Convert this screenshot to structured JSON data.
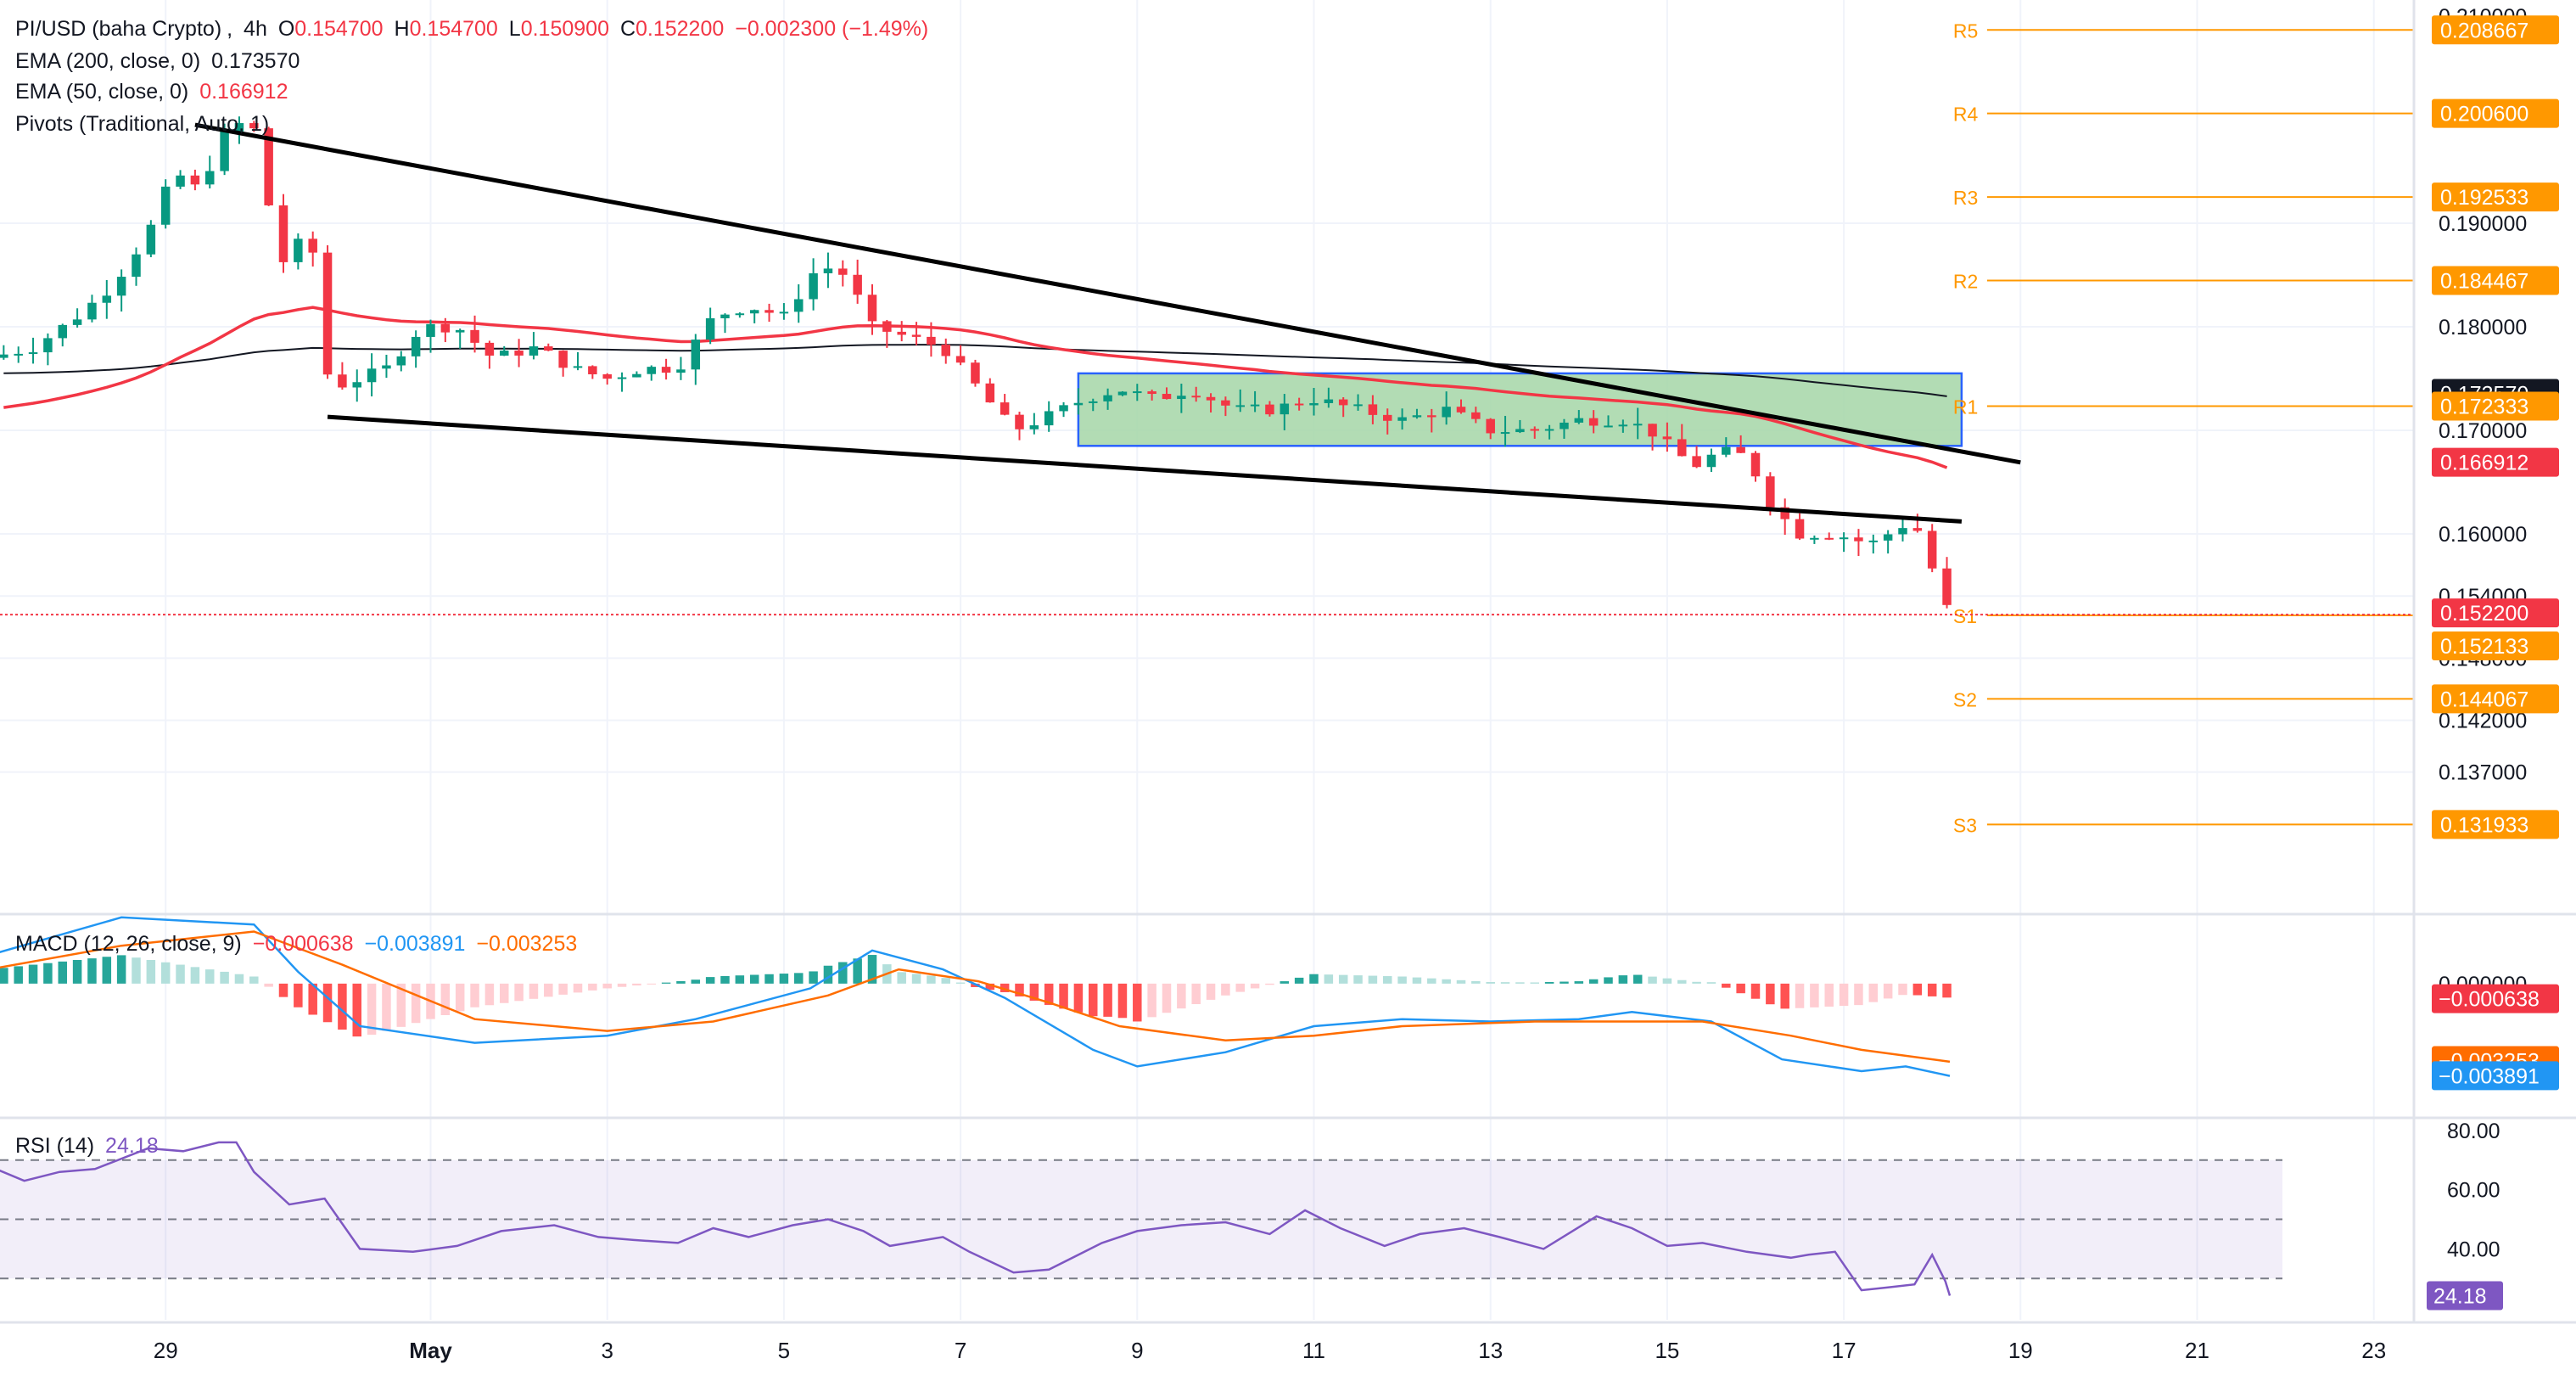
{
  "header": {
    "symbol": "PI/USD (baha Crypto)",
    "interval": "4h",
    "open_label": "O",
    "open": "0.154700",
    "high_label": "H",
    "high": "0.154700",
    "low_label": "L",
    "low": "0.150900",
    "close_label": "C",
    "close": "0.152200",
    "change": "−0.002300 (−1.49%)"
  },
  "indicators": {
    "ema200": {
      "label": "EMA (200, close, 0)",
      "value": "0.173570",
      "color": "#131722"
    },
    "ema50": {
      "label": "EMA (50, close, 0)",
      "value": "0.166912",
      "color": "#f23645"
    },
    "pivots": {
      "label": "Pivots (Traditional, Auto, 1)"
    },
    "macd": {
      "label": "MACD (12, 26, close, 9)",
      "histogram": "−0.000638",
      "macd": "−0.003891",
      "signal": "−0.003253"
    },
    "rsi": {
      "label": "RSI (14)",
      "value": "24.18"
    }
  },
  "colors": {
    "up": "#26a69a",
    "up_candle": "#089981",
    "down": "#f23645",
    "pivot": "#ff9800",
    "channel": "#000000",
    "box_fill": "#a5d6a7",
    "box_stroke": "#2962ff",
    "macd_line": "#2196f3",
    "signal_line": "#ff6d00",
    "rsi_line": "#7e57c2"
  },
  "chart_data": {
    "type": "candlestick",
    "price_axis": {
      "ticks": [
        "0.210000",
        "0.190000",
        "0.180000",
        "0.170000",
        "0.160000",
        "0.154000",
        "0.148000",
        "0.142000",
        "0.137000"
      ],
      "tick_values": [
        0.21,
        0.19,
        0.18,
        0.17,
        0.16,
        0.154,
        0.148,
        0.142,
        0.137
      ],
      "ylim": [
        0.1273,
        0.2123
      ]
    },
    "time_axis": {
      "labels": [
        "29",
        "May",
        "3",
        "5",
        "7",
        "9",
        "11",
        "13",
        "15",
        "17",
        "19",
        "21",
        "23"
      ],
      "label_days": [
        29,
        1,
        3,
        5,
        7,
        9,
        11,
        13,
        15,
        17,
        19,
        21,
        23
      ],
      "start": "Apr 27",
      "end": "May 24"
    },
    "candles_ohlc_sample": [
      [
        0.178,
        0.179,
        0.175,
        0.177
      ],
      [
        0.177,
        0.181,
        0.176,
        0.18
      ],
      [
        0.18,
        0.182,
        0.177,
        0.178
      ],
      [
        0.178,
        0.181,
        0.177,
        0.18
      ],
      [
        0.18,
        0.183,
        0.179,
        0.181
      ],
      [
        0.181,
        0.184,
        0.18,
        0.183
      ],
      [
        0.183,
        0.187,
        0.182,
        0.186
      ],
      [
        0.186,
        0.188,
        0.184,
        0.187
      ],
      [
        0.187,
        0.19,
        0.185,
        0.189
      ],
      [
        0.189,
        0.195,
        0.188,
        0.194
      ],
      [
        0.194,
        0.196,
        0.19,
        0.192
      ],
      [
        0.192,
        0.196,
        0.19,
        0.195
      ],
      [
        0.195,
        0.2,
        0.194,
        0.199
      ],
      [
        0.199,
        0.2,
        0.196,
        0.197
      ],
      [
        0.197,
        0.199,
        0.183,
        0.186
      ],
      [
        0.186,
        0.19,
        0.184,
        0.188
      ],
      [
        0.188,
        0.19,
        0.186,
        0.187
      ],
      [
        0.187,
        0.189,
        0.171,
        0.174
      ],
      [
        0.174,
        0.176,
        0.172,
        0.175
      ],
      [
        0.175,
        0.176,
        0.173,
        0.174
      ]
    ],
    "series": [
      {
        "name": "EMA (200, close, 0)",
        "last": 0.17357
      },
      {
        "name": "EMA (50, close, 0)",
        "last": 0.166912
      }
    ],
    "current_price": {
      "value": 0.1522,
      "label": "0.152200"
    },
    "axis_badges": [
      {
        "label": "0.208667",
        "value": 0.208667,
        "kind": "pivot"
      },
      {
        "label": "0.200600",
        "value": 0.2006,
        "kind": "pivot"
      },
      {
        "label": "0.192533",
        "value": 0.192533,
        "kind": "pivot"
      },
      {
        "label": "0.184467",
        "value": 0.184467,
        "kind": "pivot"
      },
      {
        "label": "0.173570",
        "value": 0.17357,
        "kind": "ema200"
      },
      {
        "label": "0.172333",
        "value": 0.172333,
        "kind": "pivot"
      },
      {
        "label": "0.166912",
        "value": 0.166912,
        "kind": "ema50"
      },
      {
        "label": "0.152200",
        "value": 0.1522,
        "kind": "price"
      },
      {
        "label": "0.152133",
        "value": 0.152133,
        "kind": "pivot"
      },
      {
        "label": "0.144067",
        "value": 0.144067,
        "kind": "pivot"
      },
      {
        "label": "0.131933",
        "value": 0.131933,
        "kind": "pivot"
      }
    ],
    "pivot_levels": [
      {
        "name": "R5",
        "value": 0.208667
      },
      {
        "name": "R4",
        "value": 0.2006
      },
      {
        "name": "R3",
        "value": 0.192533
      },
      {
        "name": "R2",
        "value": 0.184467
      },
      {
        "name": "R1",
        "value": 0.172333
      },
      {
        "name": "S1",
        "value": 0.152133
      },
      {
        "name": "S2",
        "value": 0.144067
      },
      {
        "name": "S3",
        "value": 0.131933
      }
    ],
    "channel_lines": [
      {
        "from": {
          "date": "Apr 29 08:00",
          "price": 0.1995
        },
        "to": {
          "date": "May 19 00:00",
          "price": 0.1669
        }
      },
      {
        "from": {
          "date": "Apr 30 20:00",
          "price": 0.1713
        },
        "to": {
          "date": "May 18 08:00",
          "price": 0.1612
        }
      }
    ],
    "consolidation_box": {
      "from": "May 8 08:00",
      "to": "May 18 08:00",
      "price_low": 0.1685,
      "price_high": 0.1755
    },
    "macd_axis": {
      "ticks": [
        "0.000000"
      ],
      "tick_values": [
        0
      ],
      "ylim": [
        -0.0056,
        0.0029
      ]
    },
    "macd_values": {
      "histogram": -0.000638,
      "macd": -0.003891,
      "signal": -0.003253
    },
    "rsi_axis": {
      "ticks": [
        "80.00",
        "60.00",
        "40.00"
      ],
      "tick_values": [
        80,
        60,
        40
      ],
      "bands": [
        70,
        50,
        30
      ],
      "ylim": [
        16,
        84
      ]
    },
    "rsi_value": 24.18
  }
}
